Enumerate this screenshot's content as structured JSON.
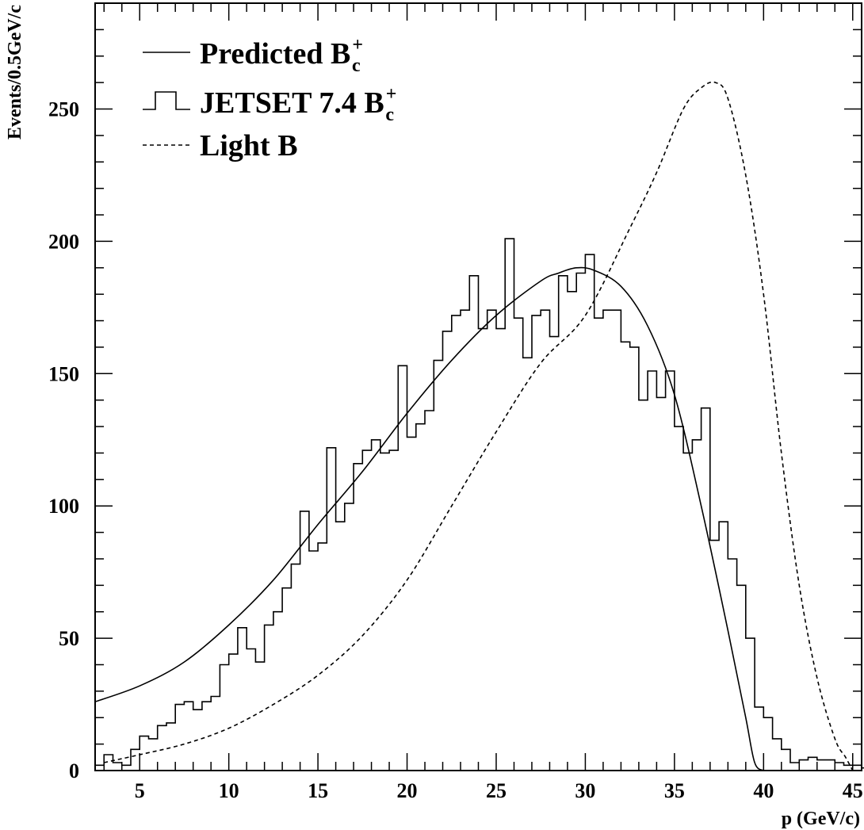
{
  "chart_data": {
    "type": "line",
    "title": "",
    "xlabel": "p (GeV/c)",
    "ylabel": "Events/0.5GeV/c",
    "xlim": [
      2.5,
      45.5
    ],
    "ylim": [
      0,
      290
    ],
    "x_ticks": [
      5,
      10,
      15,
      20,
      25,
      30,
      35,
      40,
      45
    ],
    "y_ticks": [
      0,
      50,
      100,
      150,
      200,
      250
    ],
    "legend_position": "top-left",
    "legend": [
      {
        "label": "Predicted B",
        "sup": "+",
        "sub": "c",
        "style": "solid"
      },
      {
        "label": "JETSET 7.4 B",
        "sup": "+",
        "sub": "c",
        "style": "histogram"
      },
      {
        "label": "Light B",
        "sup": "",
        "sub": "",
        "style": "dashed"
      }
    ],
    "series": [
      {
        "name": "Predicted B_c+",
        "style": "solid",
        "x": [
          2.5,
          5,
          7.5,
          10,
          12.5,
          15,
          17.5,
          20,
          22.5,
          25,
          27.5,
          28.5,
          29.5,
          30.5,
          32,
          33.5,
          35,
          36.5,
          38,
          39,
          39.5,
          40
        ],
        "y": [
          26,
          32,
          41,
          55,
          72,
          93,
          113,
          135,
          155,
          172,
          185,
          188,
          190,
          189,
          183,
          168,
          142,
          100,
          53,
          20,
          3,
          0
        ]
      },
      {
        "name": "JETSET 7.4 B_c+",
        "style": "histogram",
        "bin_start": 2.5,
        "bin_width": 0.5,
        "y": [
          2,
          6,
          3,
          2,
          8,
          13,
          12,
          17,
          18,
          25,
          26,
          23,
          26,
          28,
          40,
          44,
          54,
          46,
          41,
          55,
          60,
          69,
          78,
          98,
          83,
          86,
          122,
          94,
          101,
          116,
          121,
          125,
          120,
          121,
          153,
          126,
          131,
          136,
          155,
          166,
          172,
          174,
          187,
          167,
          174,
          167,
          201,
          171,
          156,
          172,
          174,
          164,
          187,
          181,
          188,
          195,
          171,
          174,
          174,
          162,
          160,
          140,
          151,
          141,
          151,
          130,
          120,
          125,
          137,
          87,
          94,
          80,
          70,
          50,
          24,
          20,
          12,
          8,
          3,
          4,
          5,
          4,
          4,
          3,
          2,
          2,
          1,
          0
        ]
      },
      {
        "name": "Light B",
        "style": "dashed",
        "x": [
          3,
          5,
          7.5,
          10,
          12.5,
          15,
          17.5,
          20,
          22.5,
          25,
          27.5,
          30,
          32.5,
          34,
          35.5,
          36.5,
          37.3,
          38,
          39,
          40,
          41,
          42,
          43,
          44,
          44.6,
          45
        ],
        "y": [
          3,
          6,
          10,
          16,
          25,
          36,
          51,
          72,
          100,
          128,
          154,
          172,
          205,
          226,
          250,
          258,
          260,
          254,
          225,
          180,
          120,
          70,
          35,
          12,
          5,
          0
        ]
      }
    ]
  }
}
